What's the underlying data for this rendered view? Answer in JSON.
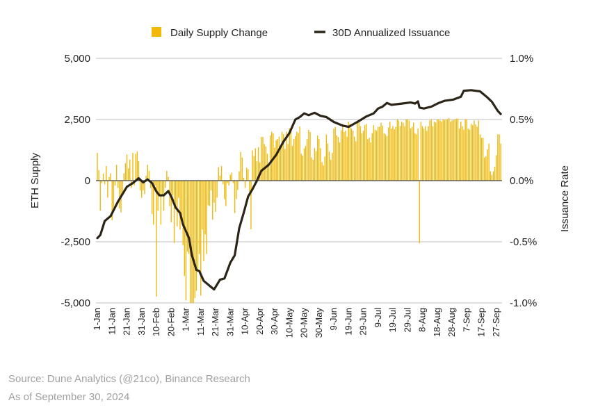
{
  "chart_data": {
    "type": "bar+line",
    "title": "",
    "legend": {
      "placement": "top",
      "entries": [
        "Daily Supply Change",
        "30D Annualized Issuance"
      ]
    },
    "ylabel_left": "ETH Supply",
    "ylabel_right": "Issuance Rate",
    "ylim_left": [
      -5000,
      5000
    ],
    "ylim_right": [
      -1.0,
      1.0
    ],
    "yticks_left": [
      "5,000",
      "2,500",
      "0",
      "-2,500",
      "-5,000"
    ],
    "yticks_right": [
      "1.0%",
      "0.5%",
      "0.0%",
      "-0.5%",
      "-1.0%"
    ],
    "x_range": [
      "1-Jan",
      "30-Sep"
    ],
    "xticks": [
      "1-Jan",
      "11-Jan",
      "21-Jan",
      "31-Jan",
      "10-Feb",
      "20-Feb",
      "1-Mar",
      "11-Mar",
      "21-Mar",
      "31-Mar",
      "10-Apr",
      "20-Apr",
      "30-Apr",
      "10-May",
      "20-May",
      "30-May",
      "9-Jun",
      "19-Jun",
      "29-Jun",
      "9-Jul",
      "19-Jul",
      "29-Jul",
      "8-Aug",
      "18-Aug",
      "28-Aug",
      "7-Sep",
      "17-Sep",
      "27-Sep"
    ],
    "grid": "horizontal",
    "colors": {
      "bars": "#F0B90B",
      "line": "#2B2417",
      "grid": "#d4d4d4",
      "zero": "#444444"
    },
    "series": [
      {
        "name": "Daily Supply Change",
        "type": "bar",
        "axis": "left",
        "start": "1-Jan",
        "frequency": "daily",
        "values": [
          1140,
          430,
          -1230,
          -100,
          290,
          -150,
          600,
          -700,
          150,
          300,
          -1620,
          -1100,
          -200,
          650,
          -300,
          -1140,
          -1300,
          -600,
          300,
          710,
          1070,
          500,
          860,
          -300,
          1140,
          -200,
          1100,
          1190,
          800,
          -400,
          -700,
          -400,
          -550,
          200,
          650,
          400,
          -300,
          -1370,
          -1800,
          -200,
          -4740,
          -1230,
          -600,
          -1800,
          -600,
          -1230,
          -300,
          400,
          150,
          -1040,
          -1700,
          -600,
          -2550,
          -1000,
          -1870,
          -700,
          -2000,
          -1500,
          -2640,
          -3900,
          -4900,
          -2900,
          -3000,
          -5000,
          -5000,
          -5000,
          -4800,
          -4500,
          -3700,
          -3000,
          -4700,
          -2000,
          -3300,
          -2200,
          -3000,
          -1000,
          -1040,
          -400,
          -1600,
          -900,
          -1280,
          -700,
          550,
          200,
          600,
          -150,
          -750,
          -1040,
          -100,
          -200,
          240,
          330,
          -100,
          -1330,
          -750,
          -380,
          380,
          1180,
          950,
          120,
          -300,
          530,
          470,
          -470,
          -1990,
          1230,
          1000,
          1320,
          800,
          1370,
          750,
          1790,
          1790,
          1500,
          1400,
          1100,
          600,
          1850,
          2000,
          1930,
          1350,
          1650,
          1700,
          1800,
          1400,
          2000,
          1900,
          1300,
          2000,
          1500,
          2150,
          2050,
          1420,
          1700,
          1820,
          2000,
          1950,
          2220,
          1100,
          1020,
          1320,
          1420,
          1700,
          2080,
          1990,
          950,
          850,
          1330,
          1210,
          1850,
          1700,
          1330,
          760,
          620,
          990,
          1890,
          1520,
          1180,
          850,
          1140,
          2130,
          2200,
          1850,
          1780,
          1560,
          2060,
          2320,
          1990,
          2040,
          1800,
          2410,
          2320,
          2130,
          2040,
          1800,
          1610,
          2410,
          2460,
          2230,
          1940,
          2040,
          2270,
          2320,
          1700,
          1750,
          1560,
          1940,
          2270,
          2080,
          2040,
          2200,
          2200,
          2370,
          2250,
          1940,
          1890,
          1820,
          2180,
          2410,
          2130,
          2230,
          2100,
          2200,
          2510,
          2460,
          2230,
          2410,
          2370,
          2230,
          2510,
          2510,
          2460,
          2130,
          2200,
          2370,
          1940,
          1890,
          2130,
          -2560,
          2410,
          2230,
          2130,
          2225,
          2035,
          2225,
          2460,
          2510,
          2225,
          2414,
          2370,
          2510,
          2510,
          2460,
          2414,
          2509,
          2480,
          2509,
          2510,
          2556,
          2414,
          2461,
          2480,
          2509,
          2537,
          2537,
          2130,
          2414,
          2225,
          2083,
          2509,
          2509,
          2130,
          2083,
          2320,
          2272,
          2460,
          2300,
          2200,
          2460,
          1893,
          1751,
          1751,
          947,
          994,
          1278,
          1515,
          379,
          237,
          379,
          568,
          1041,
          1893,
          1893,
          1515
        ]
      },
      {
        "name": "30D Annualized Issuance",
        "type": "line",
        "axis": "right",
        "unit": "%",
        "points": [
          [
            "1-Jan",
            -0.47
          ],
          [
            "3-Jan",
            -0.445
          ],
          [
            "6-Jan",
            -0.33
          ],
          [
            "10-Jan",
            -0.29
          ],
          [
            "15-Jan",
            -0.17
          ],
          [
            "21-Jan",
            -0.05
          ],
          [
            "25-Jan",
            -0.02
          ],
          [
            "29-Jan",
            0.02
          ],
          [
            "1-Feb",
            -0.015
          ],
          [
            "4-Feb",
            0.01
          ],
          [
            "7-Feb",
            -0.02
          ],
          [
            "10-Feb",
            -0.09
          ],
          [
            "12-Feb",
            -0.12
          ],
          [
            "15-Feb",
            -0.12
          ],
          [
            "18-Feb",
            -0.085
          ],
          [
            "20-Feb",
            -0.13
          ],
          [
            "23-Feb",
            -0.22
          ],
          [
            "26-Feb",
            -0.265
          ],
          [
            "28-Feb",
            -0.36
          ],
          [
            "3-Mar",
            -0.47
          ],
          [
            "5-Mar",
            -0.61
          ],
          [
            "8-Mar",
            -0.73
          ],
          [
            "10-Mar",
            -0.74
          ],
          [
            "13-Mar",
            -0.82
          ],
          [
            "17-Mar",
            -0.86
          ],
          [
            "20-Mar",
            -0.89
          ],
          [
            "24-Mar",
            -0.81
          ],
          [
            "27-Mar",
            -0.8
          ],
          [
            "31-Mar",
            -0.67
          ],
          [
            "3-Apr",
            -0.61
          ],
          [
            "6-Apr",
            -0.39
          ],
          [
            "9-Apr",
            -0.265
          ],
          [
            "12-Apr",
            -0.13
          ],
          [
            "15-Apr",
            -0.07
          ],
          [
            "18-Apr",
            0.0
          ],
          [
            "21-Apr",
            0.08
          ],
          [
            "26-Apr",
            0.13
          ],
          [
            "1-May",
            0.21
          ],
          [
            "6-May",
            0.32
          ],
          [
            "10-May",
            0.39
          ],
          [
            "14-May",
            0.5
          ],
          [
            "17-May",
            0.52
          ],
          [
            "20-May",
            0.55
          ],
          [
            "23-May",
            0.535
          ],
          [
            "27-May",
            0.555
          ],
          [
            "31-May",
            0.53
          ],
          [
            "4-Jun",
            0.52
          ],
          [
            "9-Jun",
            0.48
          ],
          [
            "15-Jun",
            0.45
          ],
          [
            "19-Jun",
            0.44
          ],
          [
            "25-Jun",
            0.48
          ],
          [
            "1-Jul",
            0.525
          ],
          [
            "6-Jul",
            0.55
          ],
          [
            "9-Jul",
            0.59
          ],
          [
            "12-Jul",
            0.605
          ],
          [
            "15-Jul",
            0.635
          ],
          [
            "18-Jul",
            0.62
          ],
          [
            "25-Jul",
            0.63
          ],
          [
            "31-Jul",
            0.64
          ],
          [
            "3-Aug",
            0.63
          ],
          [
            "5-Aug",
            0.648
          ],
          [
            "6-Aug",
            0.597
          ],
          [
            "9-Aug",
            0.59
          ],
          [
            "14-Aug",
            0.605
          ],
          [
            "19-Aug",
            0.635
          ],
          [
            "23-Aug",
            0.653
          ],
          [
            "29-Aug",
            0.663
          ],
          [
            "3-Sep",
            0.686
          ],
          [
            "5-Sep",
            0.735
          ],
          [
            "10-Sep",
            0.74
          ],
          [
            "16-Sep",
            0.73
          ],
          [
            "21-Sep",
            0.68
          ],
          [
            "24-Sep",
            0.645
          ],
          [
            "28-Sep",
            0.57
          ],
          [
            "30-Sep",
            0.545
          ]
        ]
      }
    ]
  },
  "footer": {
    "source": "Source: Dune Analytics (@21co), Binance Research",
    "as_of": "As of September 30, 2024"
  }
}
